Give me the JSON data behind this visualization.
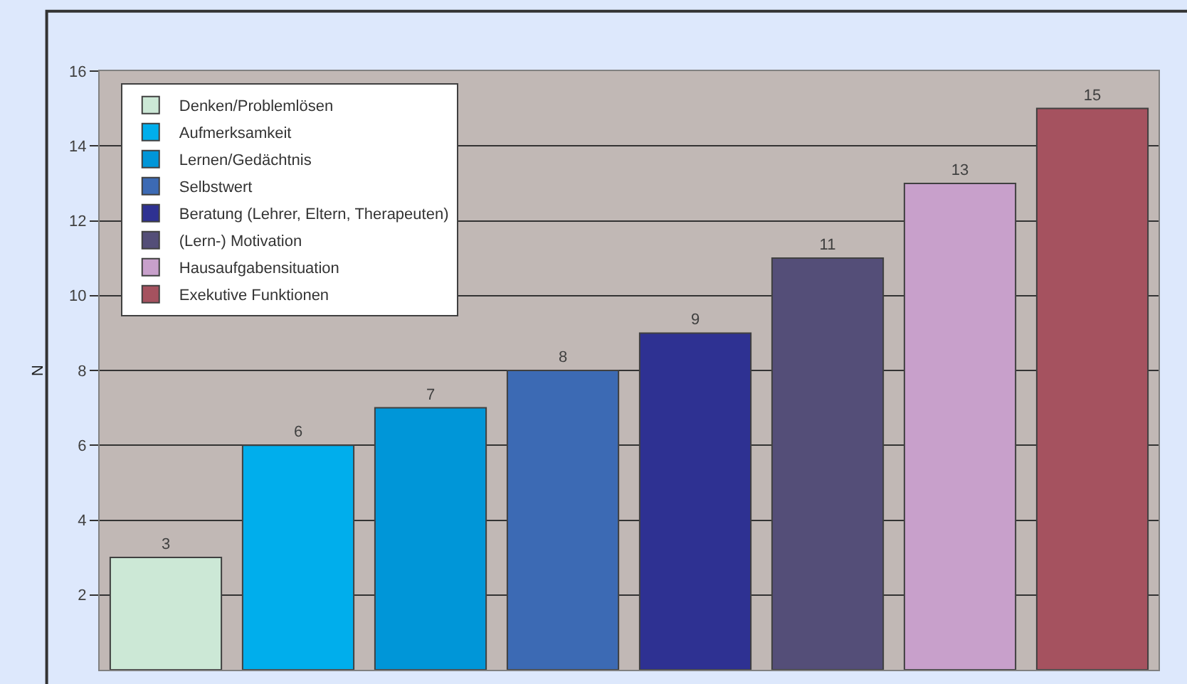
{
  "chart_data": {
    "type": "bar",
    "ylabel": "N",
    "categories": [
      null,
      null,
      null,
      null,
      null,
      null,
      null,
      null
    ],
    "series": [
      {
        "name": "Denken/Problemlösen",
        "color": "#cce8d6",
        "values": [
          3,
          null,
          null,
          null,
          null,
          null,
          null,
          null
        ]
      },
      {
        "name": "Aufmerksamkeit",
        "color": "#00aeec",
        "values": [
          null,
          6,
          null,
          null,
          null,
          null,
          null,
          null
        ]
      },
      {
        "name": "Lernen/Gedächtnis",
        "color": "#0096d8",
        "values": [
          null,
          null,
          7,
          null,
          null,
          null,
          null,
          null
        ]
      },
      {
        "name": "Selbstwert",
        "color": "#3c6ab4",
        "values": [
          null,
          null,
          null,
          8,
          null,
          null,
          null,
          null
        ]
      },
      {
        "name": "Beratung (Lehrer, Eltern, Therapeuten)",
        "color": "#2e3192",
        "values": [
          null,
          null,
          null,
          null,
          9,
          null,
          null,
          null
        ]
      },
      {
        "name": "(Lern-) Motivation",
        "color": "#544e78",
        "values": [
          null,
          null,
          null,
          null,
          null,
          11,
          null,
          null
        ]
      },
      {
        "name": "Hausaufgabensituation",
        "color": "#c8a0cb",
        "values": [
          null,
          null,
          null,
          null,
          null,
          null,
          13,
          null
        ]
      },
      {
        "name": "Exekutive Funktionen",
        "color": "#a5525f",
        "values": [
          null,
          null,
          null,
          null,
          null,
          null,
          null,
          15
        ]
      }
    ],
    "ylim": [
      0,
      16
    ],
    "yticks": [
      2,
      4,
      6,
      8,
      10,
      12,
      14,
      16
    ],
    "grid": "y",
    "legend": "top left",
    "data_labels": true
  }
}
